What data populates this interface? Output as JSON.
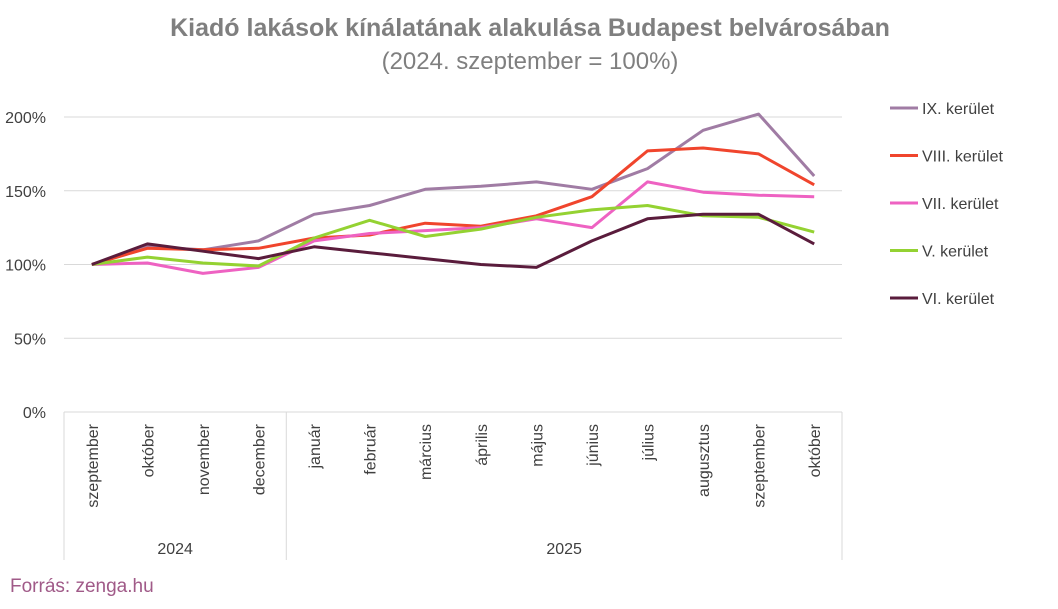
{
  "chart_data": {
    "type": "line",
    "title": "Kiadó lakások kínálatának alakulása Budapest belvárosában",
    "subtitle": "(2024. szeptember = 100%)",
    "categories": [
      "szeptember",
      "október",
      "november",
      "december",
      "január",
      "február",
      "március",
      "április",
      "május",
      "június",
      "július",
      "augusztus",
      "szeptember",
      "október"
    ],
    "x_groups": [
      {
        "label": "2024",
        "span": 4
      },
      {
        "label": "2025",
        "span": 10
      }
    ],
    "series": [
      {
        "name": "IX. kerület",
        "color": "#a07ca4",
        "values": [
          100,
          112,
          110,
          116,
          134,
          140,
          151,
          153,
          156,
          151,
          165,
          191,
          202,
          160
        ]
      },
      {
        "name": "VIII. kerület",
        "color": "#f0452d",
        "values": [
          100,
          111,
          110,
          111,
          118,
          120,
          128,
          126,
          133,
          146,
          177,
          179,
          175,
          154
        ]
      },
      {
        "name": "VII. kerület",
        "color": "#ee62c2",
        "values": [
          100,
          101,
          94,
          98,
          116,
          121,
          123,
          125,
          131,
          125,
          156,
          149,
          147,
          146
        ]
      },
      {
        "name": "V. kerület",
        "color": "#94d232",
        "values": [
          100,
          105,
          101,
          99,
          118,
          130,
          119,
          124,
          132,
          137,
          140,
          133,
          132,
          122
        ]
      },
      {
        "name": "VI. kerület",
        "color": "#5a1c3c",
        "values": [
          100,
          114,
          109,
          104,
          112,
          108,
          104,
          100,
          98,
          116,
          131,
          134,
          134,
          114
        ]
      }
    ],
    "ylim": [
      0,
      200
    ],
    "yticks": [
      {
        "value": 0,
        "label": "0%"
      },
      {
        "value": 50,
        "label": "50%"
      },
      {
        "value": 100,
        "label": "100%"
      },
      {
        "value": 150,
        "label": "150%"
      },
      {
        "value": 200,
        "label": "200%"
      }
    ],
    "grid": true,
    "legend": "right",
    "source": "Forrás: zenga.hu"
  }
}
